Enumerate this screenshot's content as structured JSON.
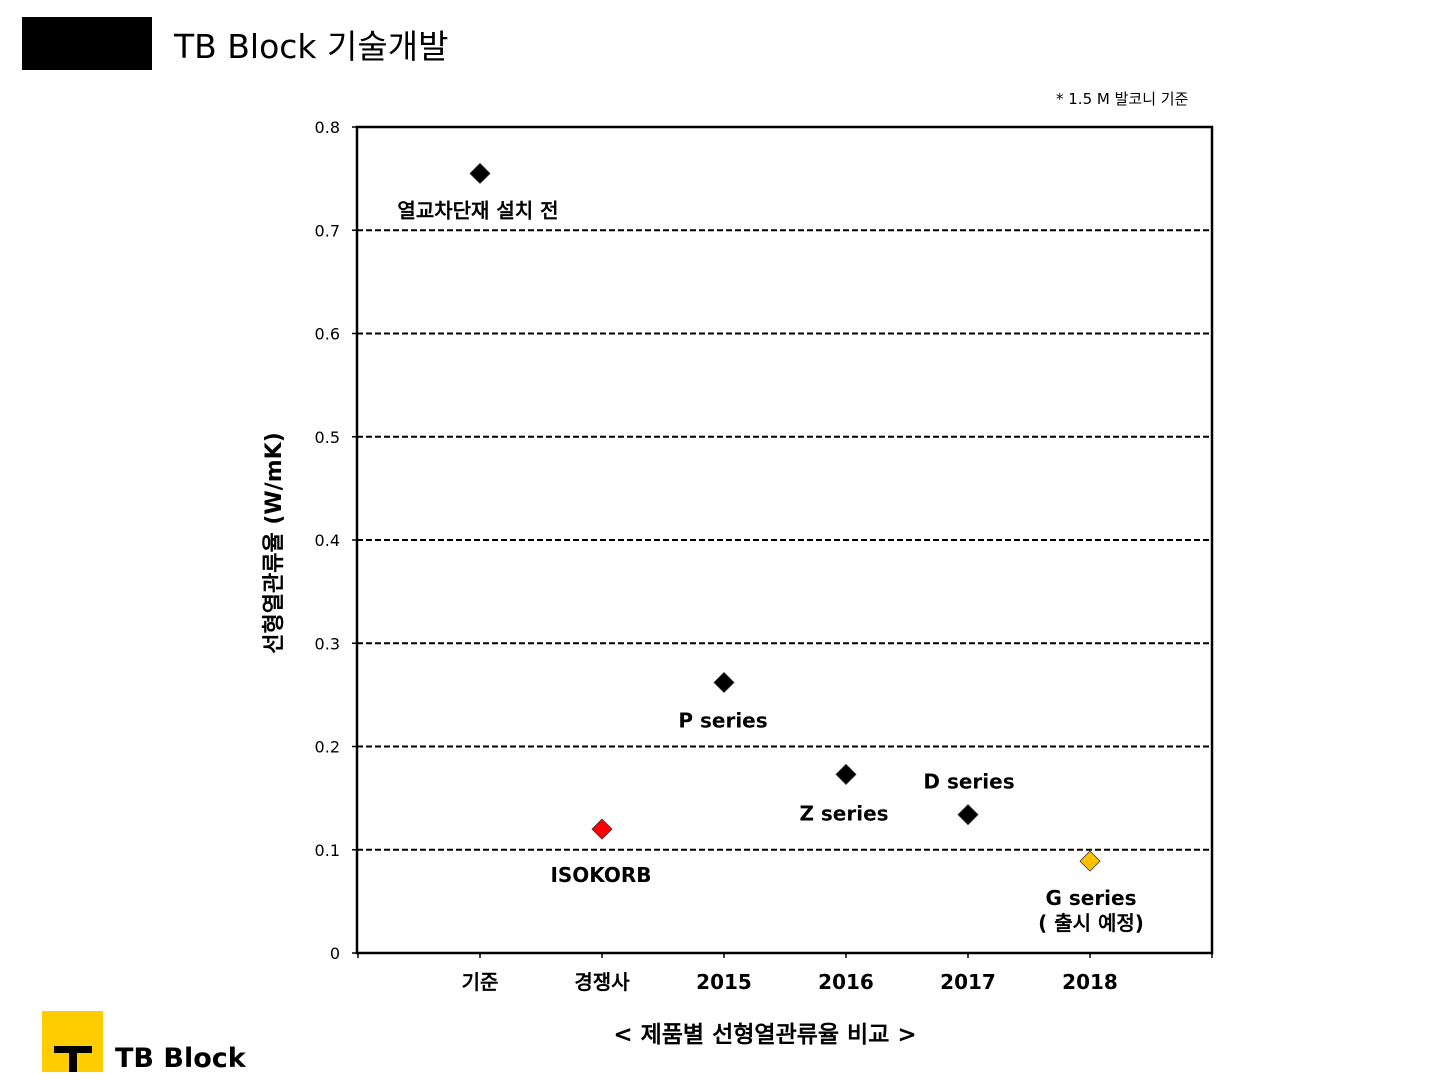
{
  "header": {
    "title": "TB Block 기술개발"
  },
  "note": "* 1.5 M 발코니 기준",
  "footer": {
    "brand": "TB Block"
  },
  "chart_data": {
    "type": "scatter",
    "title": "",
    "xlabel": "< 제품별 선형열관류율 비교 >",
    "ylabel": "선형열관류율 (W/mK)",
    "ylim": [
      0,
      0.8
    ],
    "yticks": [
      "0",
      "0.1",
      "0.2",
      "0.3",
      "0.4",
      "0.5",
      "0.6",
      "0.7",
      "0.8"
    ],
    "categories": [
      "기준",
      "경쟁사",
      "2015",
      "2016",
      "2017",
      "2018"
    ],
    "grid": "horizontal dashed",
    "points": [
      {
        "category": "기준",
        "value": 0.755,
        "label": "열교차단재 설치 전",
        "color": "#000000"
      },
      {
        "category": "경쟁사",
        "value": 0.12,
        "label": "ISOKORB",
        "color": "#ff0000"
      },
      {
        "category": "2015",
        "value": 0.262,
        "label": "P series",
        "color": "#000000"
      },
      {
        "category": "2016",
        "value": 0.173,
        "label": "Z series",
        "color": "#000000"
      },
      {
        "category": "2017",
        "value": 0.134,
        "label": "D series",
        "color": "#000000"
      },
      {
        "category": "2018",
        "value": 0.089,
        "label": "G series\n( 출시 예정)",
        "color": "#ffc000"
      }
    ]
  }
}
